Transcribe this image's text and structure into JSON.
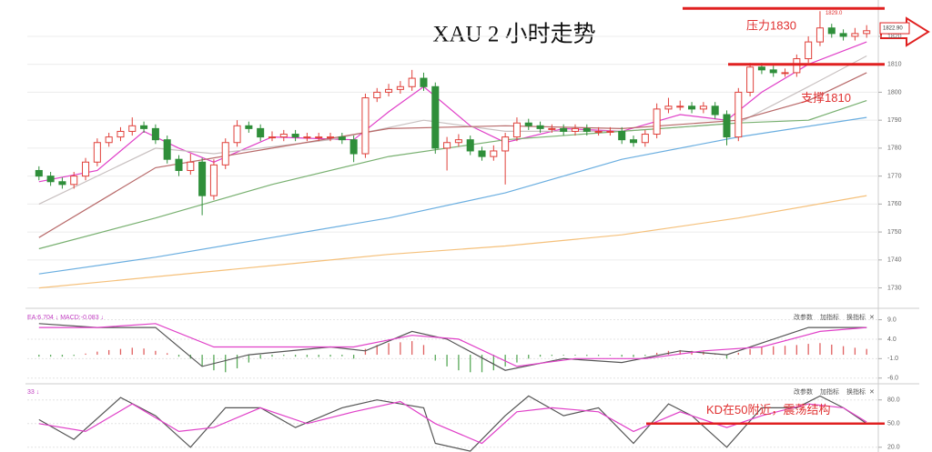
{
  "chart_data": [
    {
      "type": "candlestick",
      "title": "XAU 2 小时走势",
      "xlim": [
        -1,
        72
      ],
      "ylim": [
        1724,
        1833
      ],
      "yticks": [
        1730,
        1740,
        1750,
        1760,
        1770,
        1780,
        1790,
        1800,
        1810,
        1820
      ],
      "grid": true,
      "up_color": "#e0403a",
      "down_color": "#2f8f3a",
      "open": [
        1772,
        1770,
        1768,
        1767,
        1770,
        1775,
        1782,
        1784,
        1786,
        1788,
        1787,
        1783,
        1776,
        1772,
        1775,
        1763,
        1774,
        1782,
        1788,
        1787,
        1784,
        1784,
        1785,
        1784,
        1784,
        1784,
        1784,
        1783,
        1778,
        1798,
        1800,
        1801,
        1802,
        1805,
        1802,
        1780,
        1782,
        1783,
        1779,
        1777,
        1779,
        1784,
        1789,
        1788,
        1787,
        1787,
        1786,
        1787,
        1786,
        1786,
        1786,
        1783,
        1782,
        1785,
        1794,
        1795,
        1795,
        1794,
        1795,
        1792,
        1784,
        1800,
        1809,
        1808,
        1807,
        1807,
        1812,
        1818,
        1823,
        1821,
        1820,
        1821
      ],
      "high": [
        1773.5,
        1771.5,
        1769.5,
        1771.5,
        1776.5,
        1783.5,
        1785.5,
        1787.5,
        1791,
        1789.5,
        1788.5,
        1784.5,
        1777.5,
        1778,
        1776.5,
        1776,
        1783.5,
        1790,
        1789.5,
        1788.5,
        1786,
        1786.5,
        1786.5,
        1785.5,
        1785.5,
        1785.5,
        1785.5,
        1784.5,
        1799.5,
        1801.5,
        1803,
        1804,
        1808,
        1807,
        1803.5,
        1784,
        1785,
        1784.5,
        1780.5,
        1781,
        1785.5,
        1791,
        1790.5,
        1789.5,
        1788.5,
        1788.5,
        1788.5,
        1788.5,
        1787.5,
        1787.5,
        1787.5,
        1784.5,
        1786.5,
        1796,
        1798,
        1797,
        1796.5,
        1796.5,
        1796.5,
        1793.5,
        1801.5,
        1810.5,
        1810.5,
        1809.5,
        1808.5,
        1813.5,
        1820,
        1829,
        1824.5,
        1822.5,
        1823,
        1824
      ],
      "low": [
        1768.5,
        1766.5,
        1765.5,
        1765.5,
        1768.5,
        1773.5,
        1780.5,
        1782.5,
        1784.5,
        1785.5,
        1781.5,
        1774.5,
        1770,
        1770.5,
        1756,
        1761.5,
        1772.5,
        1780.5,
        1785.5,
        1782.5,
        1782.5,
        1782.5,
        1782.5,
        1782.5,
        1782.5,
        1782.5,
        1781.5,
        1775,
        1776.5,
        1796.5,
        1798.5,
        1799.5,
        1800.5,
        1800.5,
        1778,
        1772,
        1780.5,
        1777.5,
        1775.5,
        1775.5,
        1767,
        1782.5,
        1786.5,
        1785.5,
        1785.5,
        1784.5,
        1784.5,
        1784.5,
        1784.5,
        1784.5,
        1781.5,
        1780.5,
        1780.5,
        1783.5,
        1792.5,
        1793.5,
        1792.5,
        1792.5,
        1790.5,
        1781,
        1782.5,
        1798.5,
        1806.5,
        1805.5,
        1805.5,
        1805.5,
        1810.5,
        1816.5,
        1819.5,
        1818.5,
        1818.5,
        1819.5
      ],
      "close": [
        1770,
        1768,
        1767,
        1770,
        1775,
        1782,
        1784,
        1786,
        1788,
        1787,
        1783,
        1776,
        1772,
        1775,
        1763,
        1774,
        1782,
        1788,
        1787,
        1784,
        1784,
        1785,
        1784,
        1784,
        1784,
        1784,
        1783,
        1778,
        1798,
        1800,
        1801,
        1802,
        1805,
        1802,
        1780,
        1782,
        1783,
        1779,
        1777,
        1779,
        1784,
        1789,
        1788,
        1787,
        1787,
        1786,
        1787,
        1786,
        1786,
        1786,
        1783,
        1782,
        1785,
        1794,
        1795,
        1795,
        1794,
        1795,
        1792,
        1784,
        1800,
        1809,
        1808,
        1807,
        1807,
        1812,
        1818,
        1823,
        1821,
        1820,
        1821,
        1822
      ],
      "series": [
        {
          "color": "#e040c8",
          "x": [
            0,
            5,
            9,
            12,
            15,
            20,
            27,
            30,
            33,
            37,
            40,
            45,
            50,
            55,
            59,
            62,
            66,
            71
          ],
          "values": [
            1768,
            1772,
            1786,
            1780,
            1775,
            1784,
            1783,
            1793,
            1802,
            1788,
            1782,
            1787,
            1786,
            1792,
            1790,
            1800,
            1810,
            1818
          ]
        },
        {
          "color": "#c8c0c0",
          "x": [
            0,
            10,
            15,
            25,
            33,
            40,
            50,
            60,
            66,
            71
          ],
          "values": [
            1760,
            1780,
            1778,
            1783,
            1790,
            1786,
            1786,
            1789,
            1802,
            1813
          ]
        },
        {
          "color": "#b86a6a",
          "x": [
            0,
            10,
            20,
            30,
            40,
            50,
            60,
            66,
            71
          ],
          "values": [
            1748,
            1773,
            1780,
            1787,
            1788,
            1787,
            1790,
            1797,
            1807
          ]
        },
        {
          "color": "#78b070",
          "x": [
            0,
            10,
            20,
            30,
            40,
            50,
            60,
            66,
            71
          ],
          "values": [
            1744,
            1755,
            1767,
            1777,
            1783,
            1786,
            1789,
            1790,
            1797
          ]
        },
        {
          "color": "#6aaee0",
          "x": [
            0,
            10,
            20,
            30,
            40,
            50,
            60,
            71
          ],
          "values": [
            1735,
            1741,
            1748,
            1755,
            1764,
            1776,
            1784,
            1791
          ]
        },
        {
          "color": "#f5c07a",
          "x": [
            0,
            20,
            30,
            40,
            50,
            60,
            71
          ],
          "values": [
            1730,
            1738,
            1742,
            1745,
            1749,
            1755,
            1763
          ]
        }
      ],
      "levels": [
        {
          "value": 1830,
          "label": "压力1830"
        },
        {
          "value": 1810,
          "label": "支撑1810"
        }
      ],
      "peak": {
        "value": 1829.0,
        "label": "1829.0"
      },
      "last_price": {
        "value": 1822.9,
        "label": "1822.90"
      }
    },
    {
      "type": "macd",
      "header": "EA:6.704 ↓ MACD:-0.083 ↓",
      "buttons": [
        "改参数",
        "加指标",
        "换指标",
        "✕"
      ],
      "xlim": [
        -1,
        72
      ],
      "ylim": [
        -7,
        11
      ],
      "yticks": [
        {
          "value": 9,
          "label": "9.0"
        },
        {
          "value": 4,
          "label": "4.0"
        },
        {
          "value": -1,
          "label": "-1.0"
        },
        {
          "value": -6,
          "label": "-6.0"
        }
      ],
      "histogram": [
        -0.5,
        -0.5,
        -0.5,
        -0.3,
        0.3,
        0.8,
        1.2,
        1.5,
        1.8,
        1.6,
        1.0,
        0.4,
        -0.5,
        -1.0,
        -3,
        -4,
        -4.5,
        -3.5,
        -2,
        -1,
        -0.5,
        -0.3,
        -0.5,
        -0.6,
        -0.6,
        -0.5,
        -0.4,
        -1,
        1.5,
        2.5,
        3.0,
        3.2,
        3.5,
        2.5,
        -1.5,
        -3,
        -4,
        -4.5,
        -4.5,
        -4,
        -3,
        -2,
        -1,
        -0.5,
        -0.3,
        -0.2,
        -0.2,
        -0.3,
        -0.3,
        -0.2,
        -0.5,
        -0.6,
        -0.3,
        0.5,
        1,
        1.2,
        1,
        0.8,
        0.3,
        -1.0,
        0.5,
        1.5,
        2,
        2.2,
        2.3,
        2.5,
        2.8,
        3,
        2.6,
        2.2,
        1.8,
        1.5
      ],
      "series": [
        {
          "color": "#555555",
          "x": [
            0,
            5,
            10,
            14,
            18,
            25,
            28,
            32,
            35,
            40,
            45,
            50,
            55,
            59,
            62,
            66,
            71
          ],
          "values": [
            8,
            7,
            7,
            -3,
            0,
            2,
            1,
            6,
            4,
            -4,
            -1,
            -2,
            1,
            0,
            3,
            7,
            7
          ]
        },
        {
          "color": "#e040c8",
          "x": [
            0,
            5,
            10,
            15,
            20,
            27,
            32,
            36,
            41,
            46,
            52,
            57,
            62,
            67,
            71
          ],
          "values": [
            7,
            7,
            8,
            2,
            2,
            2,
            5,
            4,
            -3,
            -1,
            -1,
            1,
            2,
            6,
            7
          ]
        }
      ]
    },
    {
      "type": "kd",
      "header": "33 ↓",
      "buttons": [
        "改参数",
        "加指标",
        "换指标",
        "✕"
      ],
      "xlim": [
        -1,
        72
      ],
      "ylim": [
        14,
        97
      ],
      "yticks": [
        {
          "value": 80,
          "label": "80.0"
        },
        {
          "value": 50,
          "label": "50.0"
        },
        {
          "value": 20,
          "label": "20.0"
        }
      ],
      "series": [
        {
          "color": "#555555",
          "x": [
            0,
            3,
            7,
            10,
            13,
            16,
            19,
            22,
            26,
            29,
            33,
            34,
            37,
            40,
            42,
            45,
            48,
            51,
            54,
            56,
            59,
            62,
            65,
            67,
            69,
            71
          ],
          "values": [
            55,
            30,
            83,
            60,
            20,
            70,
            70,
            45,
            70,
            80,
            70,
            25,
            15,
            60,
            85,
            60,
            70,
            25,
            75,
            60,
            20,
            70,
            70,
            85,
            70,
            50
          ]
        },
        {
          "color": "#e040c8",
          "x": [
            0,
            4,
            8,
            12,
            15,
            19,
            23,
            27,
            31,
            34,
            38,
            41,
            44,
            48,
            51,
            55,
            59,
            62,
            66,
            69,
            71
          ],
          "values": [
            50,
            40,
            75,
            40,
            45,
            70,
            50,
            65,
            78,
            50,
            25,
            65,
            70,
            65,
            40,
            65,
            45,
            60,
            75,
            70,
            52
          ]
        }
      ],
      "level": {
        "value": 50,
        "label": "KD在50附近，震荡结构"
      }
    }
  ]
}
